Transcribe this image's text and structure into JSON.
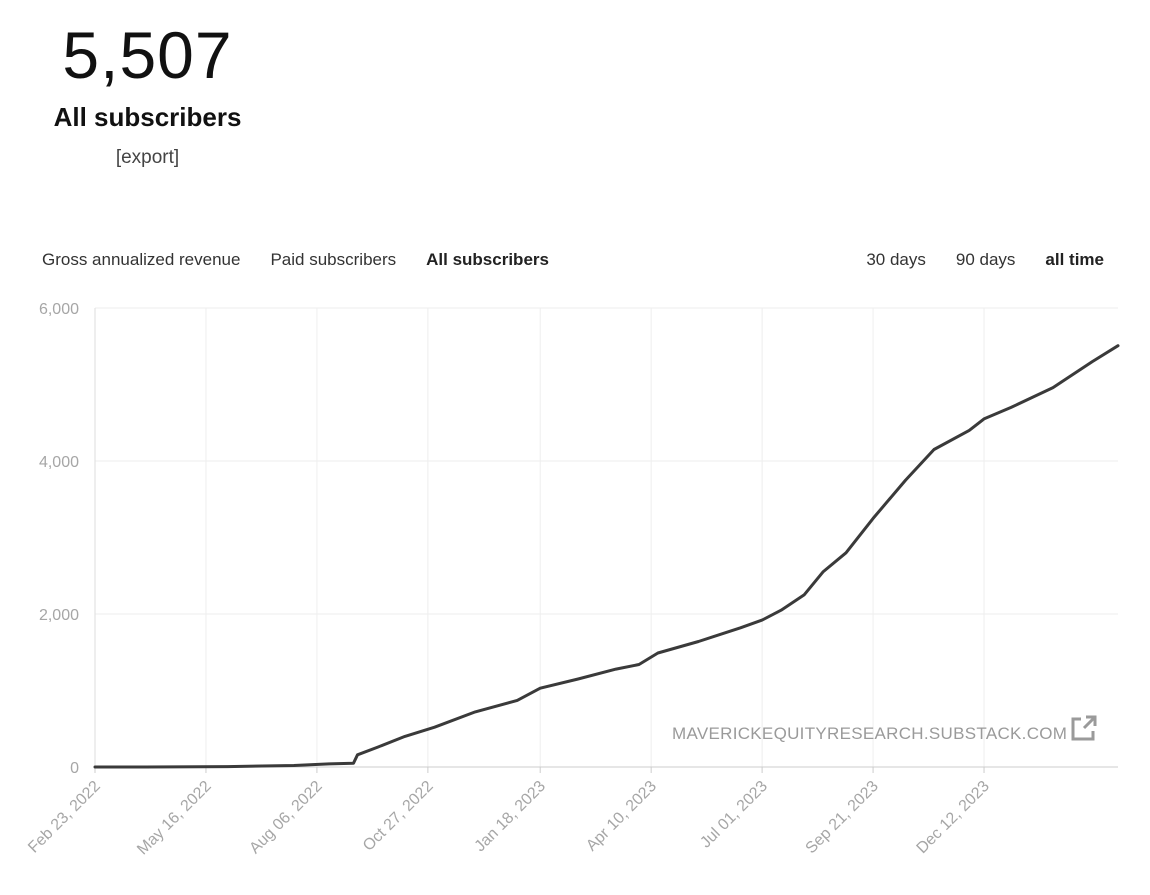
{
  "summary": {
    "count": "5,507",
    "label": "All subscribers",
    "export_label": "[export]"
  },
  "metric_tabs": [
    {
      "label": "Gross annualized revenue",
      "active": false
    },
    {
      "label": "Paid subscribers",
      "active": false
    },
    {
      "label": "All subscribers",
      "active": true
    }
  ],
  "range_tabs": [
    {
      "label": "30 days",
      "active": false
    },
    {
      "label": "90 days",
      "active": false
    },
    {
      "label": "all time",
      "active": true
    }
  ],
  "watermark": "MAVERICKEQUITYRESEARCH.SUBSTACK.COM",
  "colors": {
    "line": "#3a3a3a",
    "grid": "#eeeeee",
    "axis_text": "#a6a6a6",
    "watermark": "#9a9a9a"
  },
  "chart_data": {
    "type": "line",
    "title": "",
    "xlabel": "",
    "ylabel": "",
    "ylim": [
      0,
      6000
    ],
    "y_ticks": [
      0,
      2000,
      4000,
      6000
    ],
    "y_tick_labels": [
      "0",
      "2,000",
      "4,000",
      "6,000"
    ],
    "x_range": [
      "2022-02-23",
      "2024-03-20"
    ],
    "x_ticks": [
      "2022-02-23",
      "2022-05-16",
      "2022-08-06",
      "2022-10-27",
      "2023-01-18",
      "2023-04-10",
      "2023-07-01",
      "2023-09-21",
      "2023-12-12"
    ],
    "x_tick_labels": [
      "Feb 23, 2022",
      "May 16, 2022",
      "Aug 06, 2022",
      "Oct 27, 2022",
      "Jan 18, 2023",
      "Apr 10, 2023",
      "Jul 01, 2023",
      "Sep 21, 2023",
      "Dec 12, 2023"
    ],
    "grid": true,
    "legend": "none",
    "series": [
      {
        "x": [
          "2022-02-23",
          "2022-04-01",
          "2022-06-01",
          "2022-07-20",
          "2022-08-15",
          "2022-09-02",
          "2022-09-05",
          "2022-09-20",
          "2022-10-10",
          "2022-11-01",
          "2022-12-01",
          "2023-01-01",
          "2023-01-18",
          "2023-02-15",
          "2023-03-15",
          "2023-04-01",
          "2023-04-15",
          "2023-05-15",
          "2023-06-15",
          "2023-07-01",
          "2023-07-15",
          "2023-08-01",
          "2023-08-15",
          "2023-09-01",
          "2023-09-21",
          "2023-10-15",
          "2023-11-05",
          "2023-12-01",
          "2023-12-12",
          "2024-01-01",
          "2024-02-01",
          "2024-03-01",
          "2024-03-20"
        ],
        "values": [
          0,
          0,
          5,
          20,
          40,
          50,
          160,
          260,
          400,
          520,
          720,
          870,
          1030,
          1150,
          1280,
          1340,
          1490,
          1640,
          1820,
          1920,
          2050,
          2250,
          2550,
          2800,
          3250,
          3750,
          4150,
          4400,
          4550,
          4700,
          4960,
          5300,
          5507
        ]
      }
    ]
  }
}
